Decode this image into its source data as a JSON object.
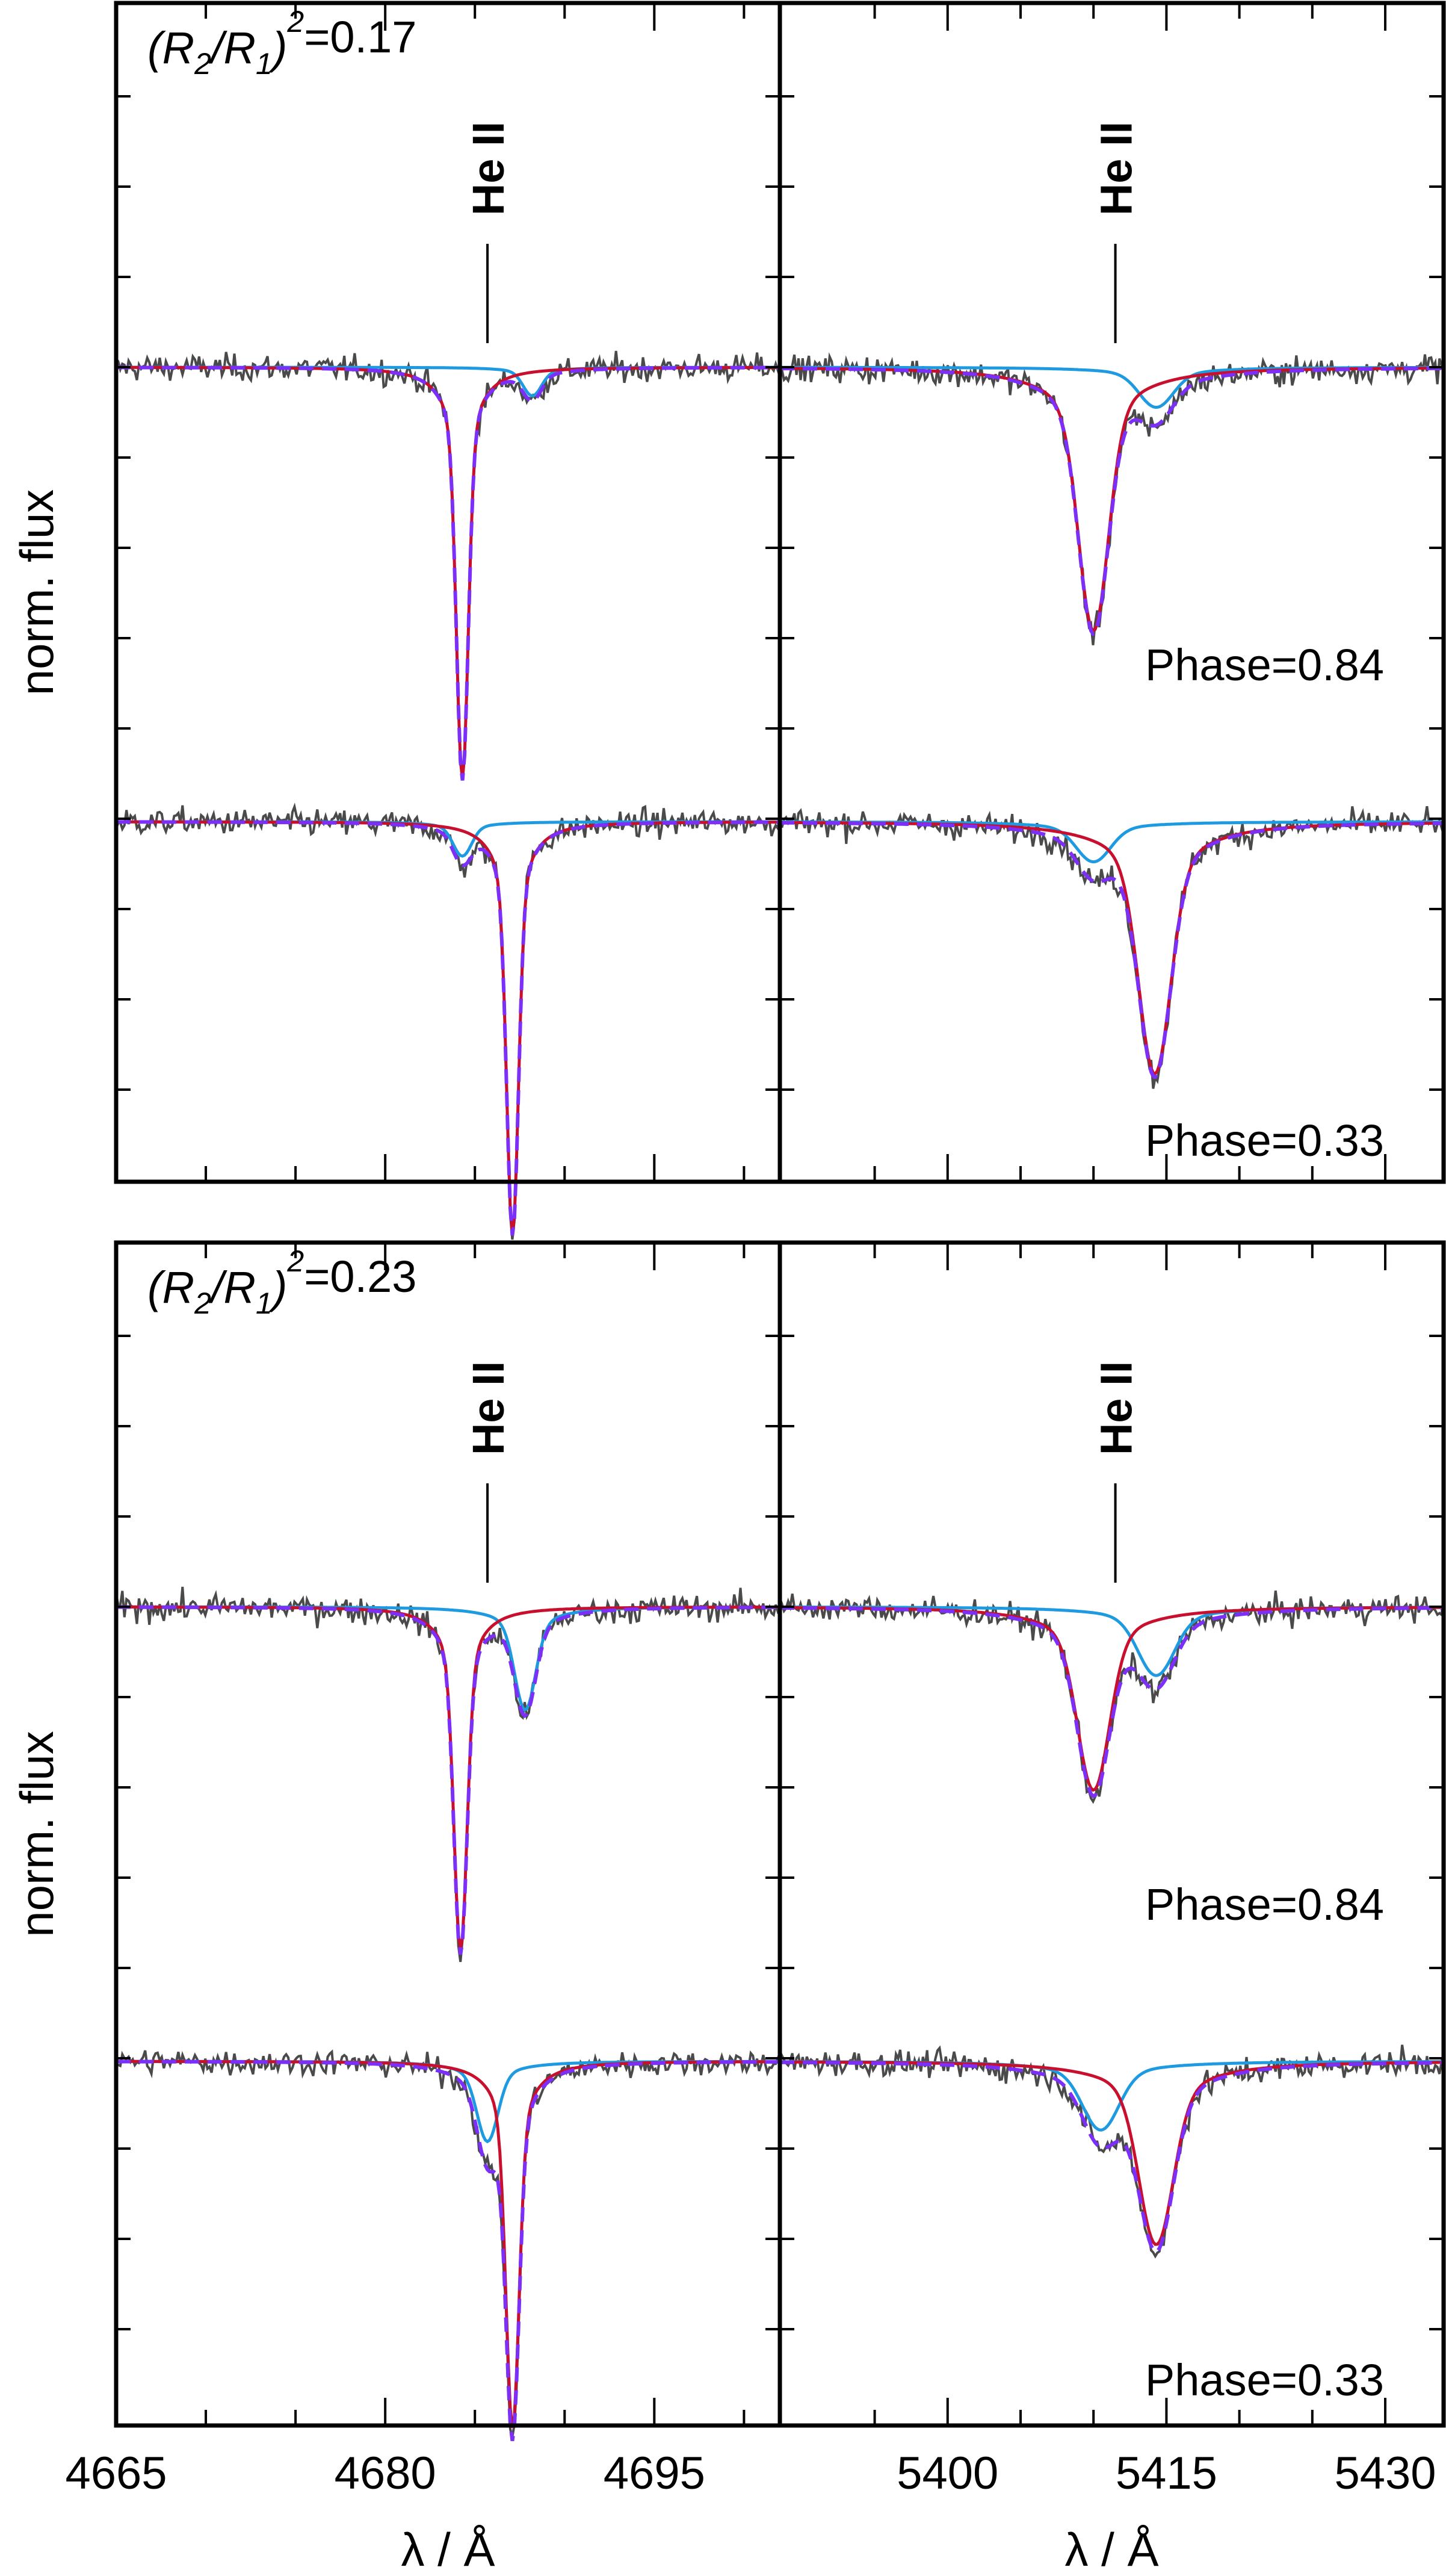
{
  "chart_data": {
    "type": "line",
    "ylabel": "norm. flux",
    "xlabel": "λ / Å",
    "line_label": "He II",
    "series_styles": {
      "observed": {
        "color": "#4a4a4a",
        "style": "solid"
      },
      "primary": {
        "color": "#c8102e",
        "style": "solid"
      },
      "secondary": {
        "color": "#1e9be0",
        "style": "solid"
      },
      "composite": {
        "color": "#7b2ff7",
        "style": "dashed"
      }
    },
    "columns": [
      {
        "xlim": [
          4665,
          4702
        ],
        "ticks": [
          4665,
          4680,
          4695
        ],
        "minor_ticks": [
          4670,
          4675,
          4685,
          4690,
          4700
        ],
        "line_center": 4685.7
      },
      {
        "xlim": [
          5388.5,
          5434
        ],
        "ticks": [
          5400,
          5415,
          5430
        ],
        "minor_ticks": [
          5395,
          5405,
          5410,
          5420,
          5425
        ],
        "line_center": 5411.5
      }
    ],
    "panels": [
      {
        "ratio_prefix": "(R",
        "ratio_sub1": "2",
        "ratio_mid": "/R",
        "ratio_sub2": "1",
        "ratio_close": ")",
        "ratio_sup": "2",
        "ratio_value": "=0.17",
        "phases": [
          {
            "label": "Phase=0.84",
            "primary": [
              {
                "center": 4684.3,
                "depth": 0.36,
                "width": 0.45
              },
              {
                "center": 5410.0,
                "depth": 0.23,
                "width": 1.4
              }
            ],
            "secondary": [
              {
                "center": 4688.2,
                "depth": 0.025,
                "width": 0.7
              },
              {
                "center": 5414.3,
                "depth": 0.035,
                "width": 1.6
              }
            ]
          },
          {
            "label": "Phase=0.33",
            "primary": [
              {
                "center": 4687.1,
                "depth": 0.36,
                "width": 0.45
              },
              {
                "center": 5414.2,
                "depth": 0.22,
                "width": 1.5
              }
            ],
            "secondary": [
              {
                "center": 4684.3,
                "depth": 0.03,
                "width": 0.7
              },
              {
                "center": 5410.0,
                "depth": 0.035,
                "width": 1.6
              }
            ]
          }
        ]
      },
      {
        "ratio_prefix": "(R",
        "ratio_sub1": "2",
        "ratio_mid": "/R",
        "ratio_sub2": "1",
        "ratio_close": ")",
        "ratio_sup": "2",
        "ratio_value": "=0.23",
        "phases": [
          {
            "label": "Phase=0.84",
            "primary": [
              {
                "center": 4684.2,
                "depth": 0.3,
                "width": 0.5
              },
              {
                "center": 5410.0,
                "depth": 0.16,
                "width": 1.5
              }
            ],
            "secondary": [
              {
                "center": 4687.8,
                "depth": 0.09,
                "width": 0.8
              },
              {
                "center": 5414.3,
                "depth": 0.06,
                "width": 1.7
              }
            ]
          },
          {
            "label": "Phase=0.33",
            "primary": [
              {
                "center": 4687.1,
                "depth": 0.32,
                "width": 0.5
              },
              {
                "center": 5414.3,
                "depth": 0.16,
                "width": 1.6
              }
            ],
            "secondary": [
              {
                "center": 4685.7,
                "depth": 0.07,
                "width": 0.8
              },
              {
                "center": 5410.5,
                "depth": 0.06,
                "width": 1.7
              }
            ]
          }
        ]
      }
    ]
  }
}
